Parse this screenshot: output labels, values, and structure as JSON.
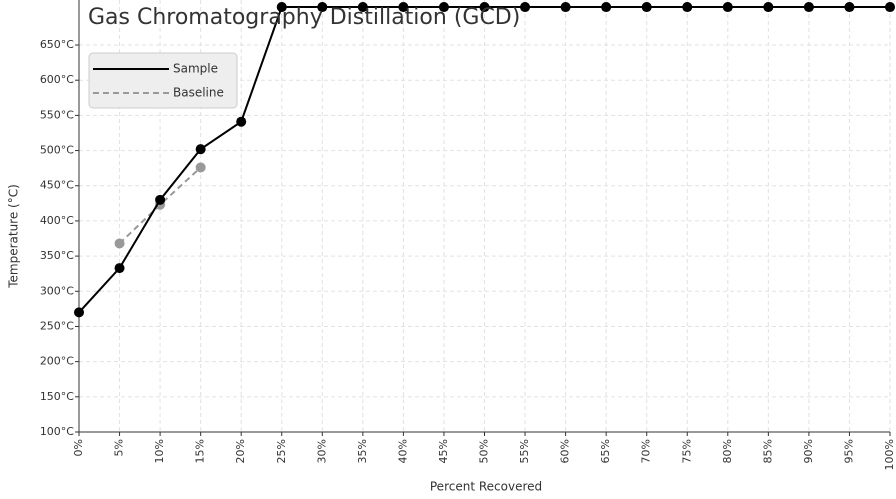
{
  "chart_data": {
    "type": "line",
    "title": "Gas Chromatography Distillation (GCD)",
    "x_label": "Percent Recovered",
    "y_label": "Temperature (°C)",
    "x": [
      0,
      5,
      10,
      15,
      20,
      25,
      30,
      35,
      40,
      45,
      50,
      55,
      60,
      65,
      70,
      75,
      80,
      85,
      90,
      95,
      100
    ],
    "series": [
      {
        "name": "Sample",
        "color": "#000000",
        "dashed": false,
        "values": [
          270,
          333,
          430,
          502,
          541,
          704,
          704,
          704,
          704,
          704,
          704,
          704,
          704,
          704,
          704,
          704,
          704,
          704,
          704,
          704,
          704
        ]
      },
      {
        "name": "Baseline",
        "color": "#999999",
        "dashed": true,
        "values": [
          null,
          368,
          423,
          476,
          null,
          704,
          704,
          704,
          704,
          704,
          704,
          704,
          704,
          704,
          704,
          704,
          704,
          704,
          704,
          704,
          704
        ]
      }
    ],
    "xlim": [
      0,
      100
    ],
    "xticks": [
      {
        "value": 0,
        "label": "0%"
      },
      {
        "value": 5,
        "label": "5%"
      },
      {
        "value": 10,
        "label": "10%"
      },
      {
        "value": 15,
        "label": "15%"
      },
      {
        "value": 20,
        "label": "20%"
      },
      {
        "value": 25,
        "label": "25%"
      },
      {
        "value": 30,
        "label": "30%"
      },
      {
        "value": 35,
        "label": "35%"
      },
      {
        "value": 40,
        "label": "40%"
      },
      {
        "value": 45,
        "label": "45%"
      },
      {
        "value": 50,
        "label": "50%"
      },
      {
        "value": 55,
        "label": "55%"
      },
      {
        "value": 60,
        "label": "60%"
      },
      {
        "value": 65,
        "label": "65%"
      },
      {
        "value": 70,
        "label": "70%"
      },
      {
        "value": 75,
        "label": "75%"
      },
      {
        "value": 80,
        "label": "80%"
      },
      {
        "value": 85,
        "label": "85%"
      },
      {
        "value": 90,
        "label": "90%"
      },
      {
        "value": 95,
        "label": "95%"
      },
      {
        "value": 100,
        "label": "100%"
      }
    ],
    "ylim": [
      100,
      714
    ],
    "yticks": [
      {
        "value": 100,
        "label": "100°C"
      },
      {
        "value": 150,
        "label": "150°C"
      },
      {
        "value": 200,
        "label": "200°C"
      },
      {
        "value": 250,
        "label": "250°C"
      },
      {
        "value": 300,
        "label": "300°C"
      },
      {
        "value": 350,
        "label": "350°C"
      },
      {
        "value": 400,
        "label": "400°C"
      },
      {
        "value": 450,
        "label": "450°C"
      },
      {
        "value": 500,
        "label": "500°C"
      },
      {
        "value": 550,
        "label": "550°C"
      },
      {
        "value": 600,
        "label": "600°C"
      },
      {
        "value": 650,
        "label": "650°C"
      }
    ],
    "grid": true,
    "legend": "upper left"
  }
}
